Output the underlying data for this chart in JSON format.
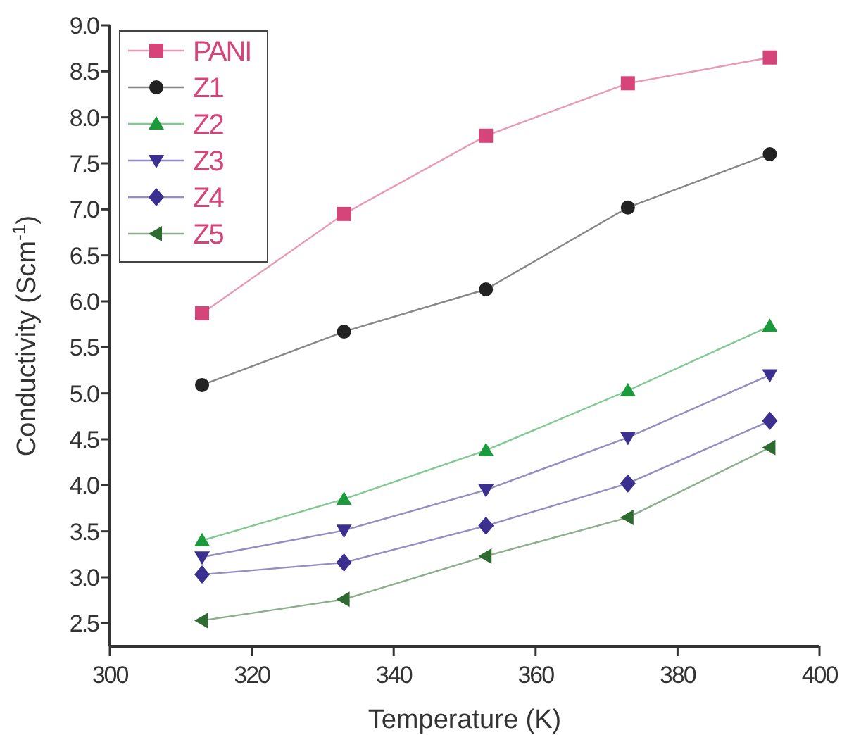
{
  "chart_data": {
    "type": "line",
    "xlabel": "Temperature (K)",
    "ylabel": "Conductivity (Scm$^{-1}$)",
    "x": [
      313,
      333,
      353,
      373,
      393
    ],
    "series": [
      {
        "name": "PANI",
        "color": "#d6457a",
        "marker": "square",
        "values": [
          5.87,
          6.95,
          7.8,
          8.37,
          8.65
        ]
      },
      {
        "name": "Z1",
        "color": "#222222",
        "marker": "circle",
        "values": [
          5.09,
          5.67,
          6.13,
          7.02,
          7.6
        ]
      },
      {
        "name": "Z2",
        "color": "#1a9a3a",
        "marker": "triangle",
        "values": [
          3.4,
          3.85,
          4.38,
          5.03,
          5.73
        ]
      },
      {
        "name": "Z3",
        "color": "#3b2f8f",
        "marker": "triangle-down",
        "values": [
          3.22,
          3.51,
          3.95,
          4.52,
          5.2
        ]
      },
      {
        "name": "Z4",
        "color": "#3b2f8f",
        "marker": "diamond",
        "values": [
          3.03,
          3.16,
          3.56,
          4.02,
          4.7
        ]
      },
      {
        "name": "Z5",
        "color": "#2e6b30",
        "marker": "triangle-left",
        "values": [
          2.53,
          2.76,
          3.23,
          3.65,
          4.41
        ]
      }
    ],
    "xlim": [
      300,
      400
    ],
    "xticks": [
      300,
      320,
      340,
      360,
      380,
      400
    ],
    "ylim": [
      2.25,
      9.0
    ],
    "yticks": [
      {
        "value": 2.5,
        "label": "2.5"
      },
      {
        "value": 3,
        "label": "3.0"
      },
      {
        "value": 3.5,
        "label": "3.5"
      },
      {
        "value": 4,
        "label": "4.0"
      },
      {
        "value": 4.5,
        "label": "4.5"
      },
      {
        "value": 5,
        "label": "5.0"
      },
      {
        "value": 5.5,
        "label": "5.5"
      },
      {
        "value": 6,
        "label": "6.0"
      },
      {
        "value": 6.5,
        "label": "6.5"
      },
      {
        "value": 7,
        "label": "7.0"
      },
      {
        "value": 7.5,
        "label": "7.5"
      },
      {
        "value": 8,
        "label": "8.0"
      },
      {
        "value": 8.5,
        "label": "8.5"
      },
      {
        "value": 9,
        "label": "9.0"
      }
    ],
    "grid": false,
    "legend": "top left",
    "line_style": "solid"
  }
}
